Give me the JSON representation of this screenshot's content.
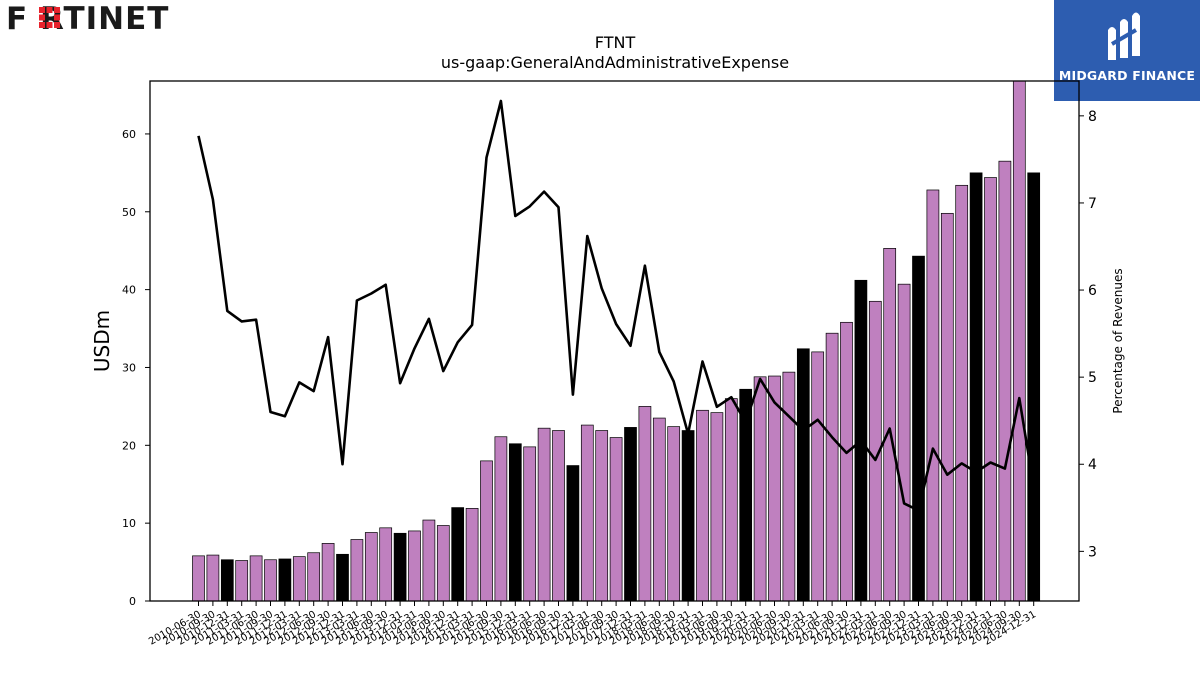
{
  "logos": {
    "left_text": "F RTINET",
    "right_text": "MIDGARD FINANCE"
  },
  "chart_data": {
    "type": "bar+line",
    "title": "FTNT",
    "subtitle": "us-gaap:GeneralAndAdministrativeExpense",
    "ylabel": "USDm",
    "y2label": "Percentage of Revenues",
    "ylim": [
      0,
      66.8
    ],
    "y2lim": [
      2.43,
      8.4
    ],
    "yticks": [
      0,
      10,
      20,
      30,
      40,
      50,
      60
    ],
    "y2ticks": [
      3,
      4,
      5,
      6,
      7,
      8
    ],
    "grid": false,
    "legend": "none",
    "colors": {
      "quarter_bar": "#bf80bf",
      "annual_bar": "#000000",
      "line": "#000000"
    },
    "categories": [
      "2010-06-30",
      "2010-09-30",
      "2010-12-31",
      "2011-03-31",
      "2011-06-30",
      "2011-09-30",
      "2011-12-31",
      "2012-03-31",
      "2012-06-30",
      "2012-09-30",
      "2012-12-31",
      "2013-03-31",
      "2013-06-30",
      "2013-09-30",
      "2013-12-31",
      "2014-03-31",
      "2014-06-30",
      "2014-09-30",
      "2014-12-31",
      "2015-03-31",
      "2015-06-30",
      "2015-09-30",
      "2015-12-31",
      "2016-03-31",
      "2016-06-30",
      "2016-09-30",
      "2016-12-31",
      "2017-03-31",
      "2017-06-30",
      "2017-09-30",
      "2017-12-31",
      "2018-03-31",
      "2018-06-30",
      "2018-09-30",
      "2018-12-31",
      "2019-03-31",
      "2019-06-30",
      "2019-09-30",
      "2019-12-31",
      "2020-03-31",
      "2020-06-30",
      "2020-09-30",
      "2020-12-31",
      "2021-03-31",
      "2021-06-30",
      "2021-09-30",
      "2021-12-31",
      "2022-03-31",
      "2022-06-30",
      "2022-09-30",
      "2022-12-31",
      "2023-03-31",
      "2023-06-30",
      "2023-09-30",
      "2023-12-31",
      "2024-03-31",
      "2024-06-30",
      "2024-09-30",
      "2024-12-31"
    ],
    "x_tick_labels": [
      "2010-06-30",
      "2010-09-30",
      "2010-12-31",
      "2011-03-31",
      "2011-06-30",
      "2011-09-30",
      "2011-12-31",
      "2012-03-31",
      "2012-06-30",
      "2012-09-30",
      "2012-12-31",
      "2013-03-31",
      "2013-06-30",
      "2013-09-30",
      "2013-12-31",
      "2014-03-31",
      "2014-06-30",
      "2014-09-30",
      "2014-12-31",
      "2015-03-31",
      "2015-06-30",
      "2015-09-30",
      "2015-12-31",
      "2016-03-31",
      "2016-06-30",
      "2016-09-30",
      "2016-12-31",
      "2017-03-31",
      "2017-06-30",
      "2017-09-30",
      "2017-12-31",
      "2018-03-31",
      "2018-06-30",
      "2018-09-30",
      "2018-12-31",
      "2019-03-31",
      "2019-06-30",
      "2019-09-30",
      "2019-12-31",
      "2020-03-31",
      "2020-06-30",
      "2020-09-30",
      "2020-12-31",
      "2021-03-31",
      "2021-06-30",
      "2021-09-30",
      "2021-12-31",
      "2022-03-31",
      "2022-06-30",
      "2022-09-30",
      "2022-12-31",
      "2023-03-31",
      "2023-06-30",
      "2023-09-30",
      "2023-12-31",
      "2024-03-31",
      "2024-06-30",
      "2024-09-30",
      "2024-12-31"
    ],
    "series": [
      {
        "kind": "bar",
        "axis": "left",
        "values": [
          5.8,
          5.9,
          5.3,
          5.2,
          5.8,
          5.3,
          5.4,
          5.7,
          6.2,
          7.4,
          6.0,
          7.9,
          8.8,
          9.4,
          8.7,
          9.0,
          10.4,
          9.7,
          12.0,
          11.9,
          18.0,
          21.1,
          20.2,
          19.8,
          22.2,
          21.9,
          17.4,
          22.6,
          21.9,
          21.0,
          22.3,
          25.0,
          23.5,
          22.4,
          21.9,
          24.5,
          24.2,
          26.0,
          27.2,
          28.8,
          28.9,
          29.4,
          32.4,
          32.0,
          34.4,
          35.8,
          41.2,
          38.5,
          45.3,
          40.7,
          44.3,
          52.8,
          49.8,
          53.4,
          55.0,
          54.4,
          56.5,
          66.8,
          55.0
        ],
        "annual": [
          false,
          false,
          true,
          false,
          false,
          false,
          true,
          false,
          false,
          false,
          true,
          false,
          false,
          false,
          true,
          false,
          false,
          false,
          true,
          false,
          false,
          false,
          true,
          false,
          false,
          false,
          true,
          false,
          false,
          false,
          true,
          false,
          false,
          false,
          true,
          false,
          false,
          false,
          true,
          false,
          false,
          false,
          true,
          false,
          false,
          false,
          true,
          false,
          false,
          false,
          true,
          false,
          false,
          false,
          true,
          false,
          false,
          false,
          true
        ]
      },
      {
        "kind": "line",
        "axis": "right",
        "values": [
          7.77,
          7.04,
          5.76,
          5.64,
          5.66,
          4.6,
          4.55,
          4.94,
          4.84,
          5.46,
          4.0,
          5.88,
          5.96,
          6.06,
          4.93,
          5.33,
          5.67,
          5.07,
          5.4,
          5.6,
          7.52,
          8.17,
          6.85,
          6.96,
          7.13,
          6.95,
          4.8,
          6.62,
          6.02,
          5.61,
          5.36,
          6.28,
          5.29,
          4.95,
          4.35,
          5.18,
          4.66,
          4.77,
          4.48,
          4.98,
          4.71,
          4.55,
          4.39,
          4.51,
          4.31,
          4.13,
          4.27,
          4.05,
          4.41,
          3.55,
          3.47,
          4.18,
          3.88,
          4.01,
          3.91,
          4.02,
          3.95,
          4.76,
          3.74
        ]
      }
    ]
  }
}
